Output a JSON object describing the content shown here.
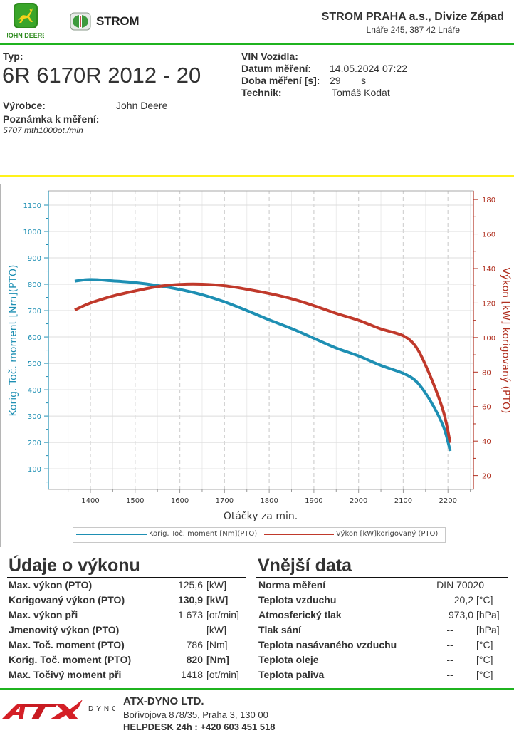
{
  "header": {
    "brand_logo_text": "JOHN DEERE",
    "dealer_logo_text": "STROM",
    "company_name": "STROM PRAHA a.s., Divize Západ",
    "company_address": "Lnáře 245, 387 42 Lnáře",
    "accent_green": "#1fb31f"
  },
  "vehicle": {
    "typ_label": "Typ:",
    "typ_value": "6R 6170R 2012 - 20",
    "vyrobce_label": "Výrobce:",
    "vyrobce_value": "John Deere",
    "poznamka_label": "Poznámka k měření:",
    "poznamka_value": "5707 mth1000ot./min",
    "vin_label": "VIN Vozidla:",
    "datum_label": "Datum měření:",
    "datum_value": "14.05.2024 07:22",
    "doba_label": "Doba měření [s]:",
    "doba_value": "29",
    "doba_unit": "s",
    "technik_label": "Technik:",
    "technik_value": "Tomáš Kodat"
  },
  "chart_data": {
    "type": "line",
    "xlabel": "Otáčky za min.",
    "ylabel_left": "Korig. Toč. moment [Nm](PTO)",
    "ylabel_right": "Výkon [kW] korigovaný (PTO)",
    "xlim": [
      1306,
      2257
    ],
    "ylim_left": [
      22,
      1154
    ],
    "ylim_right": [
      12,
      185
    ],
    "x_ticks": [
      1400,
      1500,
      1600,
      1700,
      1800,
      1900,
      2000,
      2100,
      2200
    ],
    "y_ticks_left": [
      100,
      200,
      300,
      400,
      500,
      600,
      700,
      800,
      900,
      1000,
      1100
    ],
    "y_ticks_right": [
      20,
      40,
      60,
      80,
      100,
      120,
      140,
      160,
      180
    ],
    "grid": true,
    "legend_position": "bottom",
    "series": [
      {
        "name": "Korig. Toč. moment [Nm](PTO)",
        "axis": "left",
        "color": "#1e8fb3",
        "x": [
          1365,
          1400,
          1450,
          1500,
          1550,
          1600,
          1650,
          1700,
          1750,
          1800,
          1850,
          1900,
          1950,
          2000,
          2050,
          2100,
          2130,
          2160,
          2190,
          2205
        ],
        "values": [
          812,
          818,
          813,
          806,
          795,
          780,
          760,
          733,
          700,
          665,
          632,
          595,
          558,
          528,
          492,
          462,
          430,
          360,
          260,
          168
        ]
      },
      {
        "name": "Výkon [kW]korigovaný (PTO)",
        "axis": "right",
        "color": "#c0392b",
        "x": [
          1365,
          1400,
          1450,
          1500,
          1550,
          1600,
          1650,
          1700,
          1750,
          1800,
          1850,
          1900,
          1950,
          2000,
          2050,
          2100,
          2130,
          2160,
          2190,
          2205
        ],
        "values": [
          116,
          120,
          124,
          127,
          129.5,
          130.8,
          130.9,
          130,
          128,
          125.5,
          122.5,
          118.5,
          114,
          110,
          105,
          101,
          94,
          78,
          57,
          39
        ]
      }
    ]
  },
  "performance": {
    "title": "Údaje o výkonu",
    "rows": [
      {
        "label": "Max. výkon (PTO)",
        "value": "125,6",
        "unit": "[kW]",
        "bold": false
      },
      {
        "label": "Korigovaný výkon (PTO)",
        "value": "130,9",
        "unit": "[kW]",
        "bold": true
      },
      {
        "label": "Max. výkon při",
        "value": "1 673",
        "unit": "[ot/min]",
        "bold": false
      },
      {
        "label": "Jmenovitý výkon (PTO)",
        "value": "",
        "unit": "[kW]",
        "bold": false
      },
      {
        "label": "Max. Toč. moment (PTO)",
        "value": "786",
        "unit": "[Nm]",
        "bold": false
      },
      {
        "label": "Korig. Toč. moment (PTO)",
        "value": "820",
        "unit": "[Nm]",
        "bold": true
      },
      {
        "label": "Max. Točivý moment při",
        "value": "1418",
        "unit": "[ot/min]",
        "bold": false
      }
    ]
  },
  "external": {
    "title": "Vnější data",
    "rows": [
      {
        "label": "Norma měření",
        "value": "DIN 70020",
        "unit": ""
      },
      {
        "label": "Teplota vzduchu",
        "value": "20,2",
        "unit": "[°C]"
      },
      {
        "label": "Atmosferický tlak",
        "value": "973,0",
        "unit": "[hPa]"
      },
      {
        "label": "Tlak sání",
        "value": "--",
        "unit": "[hPa]"
      },
      {
        "label": "Teplota nasávaného vzduchu",
        "value": "--",
        "unit": "[°C]"
      },
      {
        "label": "Teplota oleje",
        "value": "--",
        "unit": "[°C]"
      },
      {
        "label": "Teplota paliva",
        "value": "--",
        "unit": "[°C]"
      }
    ]
  },
  "footer": {
    "logo_text": "ATX",
    "logo_sub": "DYNO",
    "company": "ATX-DYNO LTD.",
    "address": "Bořivojova 878/35, Praha 3, 130 00",
    "helpdesk": "HELPDESK 24h : +420 603 451 518",
    "accent_red": "#d41f26"
  }
}
